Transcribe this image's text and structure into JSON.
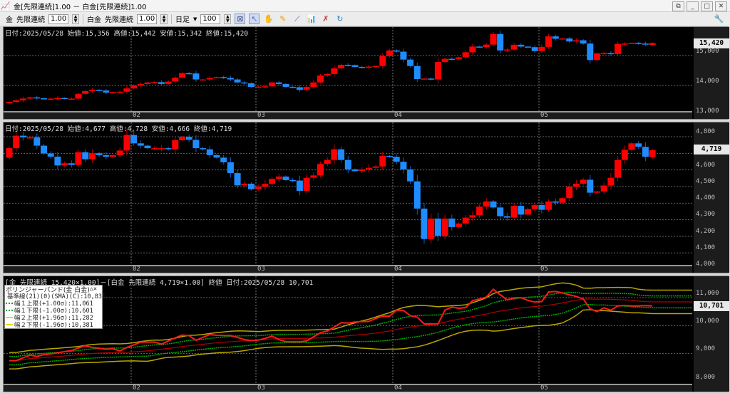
{
  "window": {
    "title": "金[先限連続]1.00 － 白金[先限連続]1.00",
    "buttons": [
      "restore",
      "minimize",
      "maximize",
      "close"
    ]
  },
  "toolbar": {
    "sym1": "金",
    "contract1": "先限連続",
    "mult1": "1.00",
    "sym2": "白金",
    "contract2": "先限連続",
    "mult2": "1.00",
    "period": "日足",
    "count": "100",
    "icons": [
      "chart-settings-icon",
      "select-cursor-icon",
      "hand-icon",
      "pencil-icon",
      "line-tool-icon",
      "indicator-icon",
      "delete-lines-icon",
      "refresh-icon",
      "wrench-icon"
    ]
  },
  "colors": {
    "up": "#ff0000",
    "down": "#1e8cff",
    "ratio": "#ff1a1a",
    "sma": "#b00000",
    "band1": "#00b000",
    "band2": "#b8a800"
  },
  "date_labels": [
    "02",
    "03",
    "04",
    "05"
  ],
  "gold": {
    "header": {
      "date": "日付:2025/05/28",
      "open": "始値:15,356",
      "high": "高値:15,442",
      "low": "安値:15,342",
      "close": "終値:15,420"
    },
    "last": "15,420",
    "ticks": [
      "15,000",
      "14,000",
      "13,000"
    ],
    "ohlc_last": [
      15356,
      15442,
      15342,
      15420
    ],
    "closes": [
      13450,
      13500,
      13560,
      13600,
      13570,
      13560,
      13560,
      13580,
      13560,
      13560,
      13720,
      13810,
      13850,
      13830,
      13760,
      13780,
      13790,
      13900,
      14000,
      14050,
      14100,
      14110,
      14050,
      14130,
      14260,
      14410,
      14400,
      14200,
      14200,
      14250,
      14280,
      14250,
      14200,
      14100,
      14070,
      13950,
      13960,
      13970,
      14100,
      14050,
      13950,
      13940,
      13850,
      13950,
      14100,
      14330,
      14380,
      14570,
      14690,
      14680,
      14620,
      14600,
      14630,
      14650,
      14980,
      15170,
      15130,
      14865,
      14650,
      14214,
      14230,
      14200,
      14786,
      14890,
      14880,
      14940,
      15110,
      15300,
      15280,
      15365,
      15720,
      15170,
      15200,
      15360,
      15300,
      15280,
      15150,
      15290,
      15640,
      15560,
      15570,
      15470,
      15510,
      15400,
      14850,
      15070,
      15080,
      15050,
      15390,
      15400,
      15420,
      15400,
      15380,
      15420
    ]
  },
  "platinum": {
    "header": {
      "date": "日付:2025/05/28",
      "open": "始値:4,677",
      "high": "高値:4,728",
      "low": "安値:4,666",
      "close": "終値:4,719"
    },
    "last": "4,719",
    "ticks": [
      "4,800",
      "4,600",
      "4,500",
      "4,400",
      "4,300",
      "4,200",
      "4,100",
      "4,000"
    ],
    "ohlc_last": [
      4677,
      4728,
      4666,
      4719
    ],
    "closes": [
      4731,
      4806,
      4796,
      4796,
      4746,
      4699,
      4680,
      4627,
      4640,
      4630,
      4706,
      4664,
      4700,
      4689,
      4679,
      4689,
      4717,
      4810,
      4760,
      4746,
      4731,
      4731,
      4731,
      4724,
      4779,
      4799,
      4781,
      4731,
      4724,
      4689,
      4674,
      4646,
      4581,
      4507,
      4517,
      4484,
      4499,
      4516,
      4546,
      4560,
      4539,
      4536,
      4474,
      4553,
      4567,
      4636,
      4660,
      4724,
      4660,
      4603,
      4593,
      4603,
      4613,
      4621,
      4684,
      4679,
      4649,
      4603,
      4531,
      4367,
      4184,
      4307,
      4203,
      4307,
      4256,
      4277,
      4313,
      4327,
      4379,
      4410,
      4374,
      4321,
      4313,
      4384,
      4331,
      4364,
      4389,
      4360,
      4410,
      4403,
      4430,
      4499,
      4517,
      4541,
      4463,
      4470,
      4506,
      4553,
      4660,
      4721,
      4760,
      4739,
      4679,
      4719
    ]
  },
  "ratio": {
    "header": "[金 先限連続 15,420×1.00]－[白金 先限連続 4,719×1.00] 終値 日付:2025/05/28 10,701",
    "last": "10,701",
    "ticks": [
      "11,000",
      "10,000",
      "9,000",
      "8,000"
    ],
    "legend": {
      "title": "ボリンジャーバンド(金 白金)",
      "items": [
        "基準線(21)(0)(SMA)(C):10,831",
        "幅１上限(+1.00σ):11,061",
        "幅１下限(-1.00σ):10,601",
        "幅２上限(+1.96σ):11,282",
        "幅２下限(-1.96σ):10,381"
      ]
    },
    "values": [
      8746,
      8746,
      8850,
      8941,
      8898,
      8960,
      8990,
      9025,
      9070,
      9110,
      9200,
      9280,
      9220,
      9190,
      9153,
      9170,
      9093,
      9220,
      9310,
      9407,
      9410,
      9410,
      9339,
      9450,
      9560,
      9661,
      9640,
      9475,
      9580,
      9678,
      9650,
      9645,
      9644,
      9580,
      9500,
      9466,
      9480,
      9540,
      9627,
      9500,
      9424,
      9424,
      9424,
      9450,
      9600,
      9746,
      9810,
      9950,
      10102,
      10090,
      10130,
      10140,
      10150,
      10250,
      10339,
      10339,
      10551,
      10540,
      10356,
      10300,
      10059,
      10059,
      10059,
      10551,
      10661,
      10620,
      10640,
      10890,
      10949,
      11020,
      11300,
      11100,
      10920,
      10990,
      11000,
      10900,
      10840,
      10860,
      11200,
      11220,
      11169,
      11100,
      11040,
      10950,
      10600,
      10500,
      10636,
      10550,
      10700,
      10720,
      10700,
      10705,
      10715,
      10701
    ]
  }
}
